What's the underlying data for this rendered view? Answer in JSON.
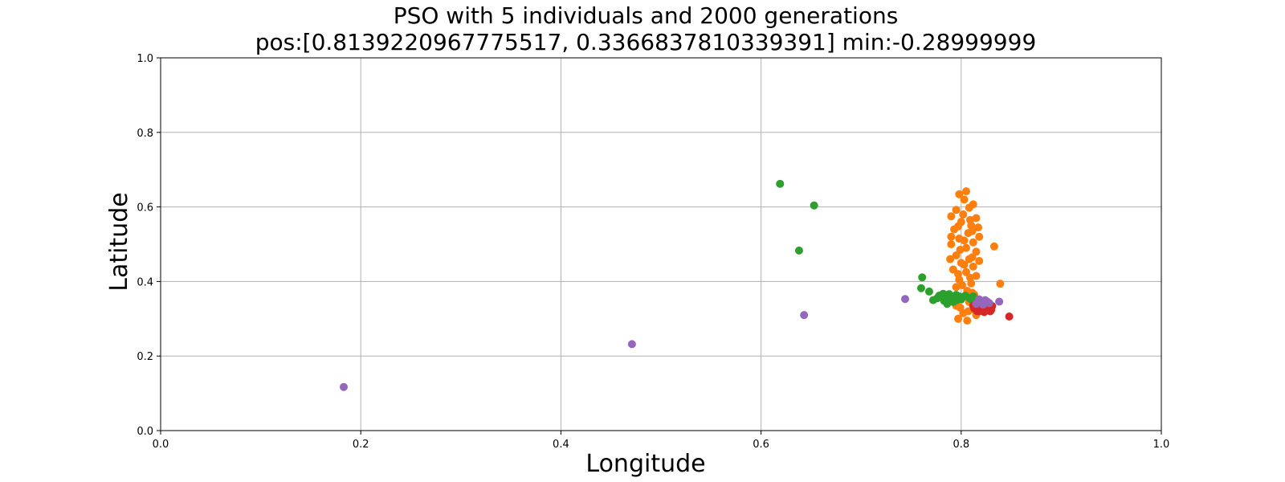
{
  "chart_data": {
    "type": "scatter",
    "title": "PSO with 5 individuals and 2000 generations",
    "subtitle": "pos:[0.8139220967775517, 0.3366837810339391] min:-0.28999999",
    "xlabel": "Longitude",
    "ylabel": "Latitude",
    "xlim": [
      0,
      1
    ],
    "ylim": [
      0,
      1
    ],
    "xticks": [
      "0.0",
      "0.2",
      "0.4",
      "0.6",
      "0.8",
      "1.0"
    ],
    "yticks": [
      "0.0",
      "0.2",
      "0.4",
      "0.6",
      "0.8",
      "1.0"
    ],
    "grid": true,
    "series": [
      {
        "color": "#1f77b4",
        "points": [
          [
            0.815,
            0.345
          ],
          [
            0.818,
            0.34
          ]
        ]
      },
      {
        "color": "#ff7f0e",
        "points": [
          [
            0.805,
            0.642
          ],
          [
            0.798,
            0.634
          ],
          [
            0.812,
            0.607
          ],
          [
            0.795,
            0.592
          ],
          [
            0.803,
            0.62
          ],
          [
            0.808,
            0.598
          ],
          [
            0.79,
            0.575
          ],
          [
            0.815,
            0.57
          ],
          [
            0.8,
            0.56
          ],
          [
            0.81,
            0.55
          ],
          [
            0.793,
            0.54
          ],
          [
            0.807,
            0.53
          ],
          [
            0.818,
            0.52
          ],
          [
            0.798,
            0.515
          ],
          [
            0.812,
            0.505
          ],
          [
            0.79,
            0.5
          ],
          [
            0.805,
            0.49
          ],
          [
            0.815,
            0.48
          ],
          [
            0.795,
            0.47
          ],
          [
            0.808,
            0.46
          ],
          [
            0.8,
            0.45
          ],
          [
            0.812,
            0.44
          ],
          [
            0.792,
            0.432
          ],
          [
            0.805,
            0.425
          ],
          [
            0.815,
            0.415
          ],
          [
            0.798,
            0.405
          ],
          [
            0.81,
            0.395
          ],
          [
            0.795,
            0.385
          ],
          [
            0.806,
            0.375
          ],
          [
            0.813,
            0.365
          ],
          [
            0.8,
            0.355
          ],
          [
            0.808,
            0.345
          ],
          [
            0.795,
            0.335
          ],
          [
            0.812,
            0.325
          ],
          [
            0.802,
            0.315
          ],
          [
            0.797,
            0.3
          ],
          [
            0.806,
            0.295
          ],
          [
            0.815,
            0.31
          ],
          [
            0.833,
            0.494
          ],
          [
            0.839,
            0.394
          ],
          [
            0.802,
            0.58
          ],
          [
            0.809,
            0.565
          ],
          [
            0.797,
            0.548
          ],
          [
            0.811,
            0.535
          ],
          [
            0.803,
            0.51
          ],
          [
            0.799,
            0.485
          ],
          [
            0.811,
            0.465
          ],
          [
            0.803,
            0.445
          ],
          [
            0.797,
            0.42
          ],
          [
            0.809,
            0.41
          ],
          [
            0.801,
            0.39
          ],
          [
            0.811,
            0.37
          ],
          [
            0.799,
            0.33
          ],
          [
            0.807,
            0.32
          ],
          [
            0.79,
            0.52
          ],
          [
            0.817,
            0.545
          ],
          [
            0.789,
            0.46
          ],
          [
            0.818,
            0.455
          ]
        ]
      },
      {
        "color": "#2ca02c",
        "points": [
          [
            0.619,
            0.662
          ],
          [
            0.653,
            0.604
          ],
          [
            0.638,
            0.483
          ],
          [
            0.761,
            0.411
          ],
          [
            0.76,
            0.382
          ],
          [
            0.768,
            0.373
          ],
          [
            0.772,
            0.35
          ],
          [
            0.778,
            0.362
          ],
          [
            0.782,
            0.367
          ],
          [
            0.785,
            0.358
          ],
          [
            0.788,
            0.366
          ],
          [
            0.79,
            0.355
          ],
          [
            0.795,
            0.364
          ],
          [
            0.798,
            0.36
          ],
          [
            0.8,
            0.352
          ],
          [
            0.804,
            0.362
          ],
          [
            0.808,
            0.356
          ],
          [
            0.812,
            0.36
          ],
          [
            0.783,
            0.348
          ],
          [
            0.792,
            0.345
          ],
          [
            0.786,
            0.34
          ],
          [
            0.796,
            0.35
          ],
          [
            0.802,
            0.358
          ],
          [
            0.81,
            0.352
          ],
          [
            0.776,
            0.355
          ]
        ]
      },
      {
        "color": "#d62728",
        "points": [
          [
            0.848,
            0.306
          ],
          [
            0.812,
            0.335
          ],
          [
            0.815,
            0.325
          ],
          [
            0.818,
            0.32
          ],
          [
            0.822,
            0.328
          ],
          [
            0.825,
            0.322
          ],
          [
            0.828,
            0.33
          ],
          [
            0.83,
            0.324
          ],
          [
            0.82,
            0.332
          ],
          [
            0.826,
            0.336
          ],
          [
            0.816,
            0.32
          ],
          [
            0.831,
            0.334
          ],
          [
            0.823,
            0.318
          ],
          [
            0.829,
            0.32
          ],
          [
            0.813,
            0.328
          ],
          [
            0.827,
            0.34
          ],
          [
            0.819,
            0.338
          ]
        ]
      },
      {
        "color": "#9467bd",
        "points": [
          [
            0.183,
            0.117
          ],
          [
            0.471,
            0.232
          ],
          [
            0.643,
            0.31
          ],
          [
            0.744,
            0.353
          ],
          [
            0.838,
            0.346
          ],
          [
            0.815,
            0.34
          ],
          [
            0.82,
            0.345
          ],
          [
            0.824,
            0.35
          ],
          [
            0.828,
            0.342
          ],
          [
            0.818,
            0.352
          ],
          [
            0.822,
            0.338
          ],
          [
            0.826,
            0.346
          ]
        ]
      }
    ]
  }
}
